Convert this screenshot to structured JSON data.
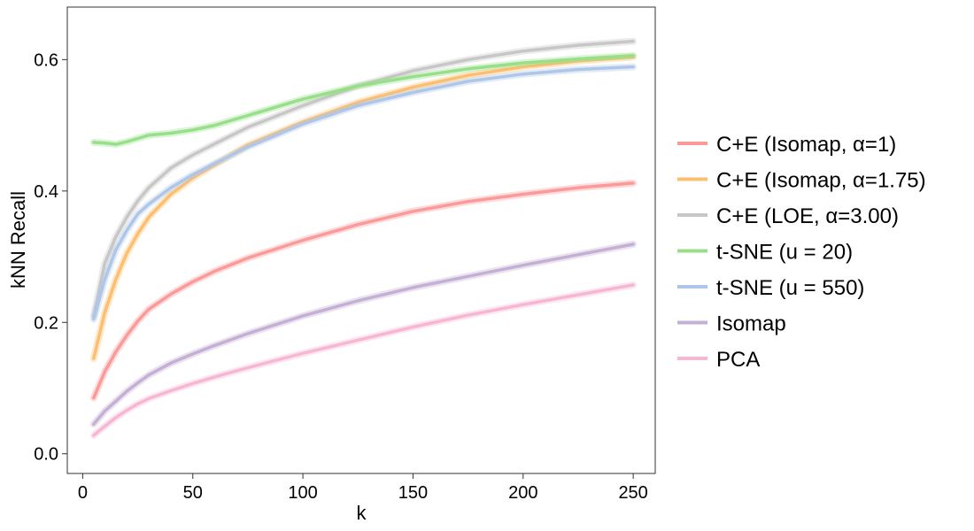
{
  "chart_data": {
    "type": "line",
    "title": "",
    "xlabel": "k",
    "ylabel": "kNN Recall",
    "xlim": [
      -7,
      260
    ],
    "ylim": [
      -0.03,
      0.68
    ],
    "x_ticks": [
      0,
      50,
      100,
      150,
      200,
      250
    ],
    "x_tick_labels": [
      "0",
      "50",
      "100",
      "150",
      "200",
      "250"
    ],
    "y_ticks": [
      0.0,
      0.2,
      0.4,
      0.6
    ],
    "y_tick_labels": [
      "0.0",
      "0.2",
      "0.4",
      "0.6"
    ],
    "grid": false,
    "legend_position": "right",
    "x": [
      5,
      10,
      15,
      20,
      25,
      30,
      40,
      50,
      60,
      75,
      100,
      125,
      150,
      175,
      200,
      225,
      250
    ],
    "series": [
      {
        "name": "C+E (Isomap, α=1)",
        "color": "#fb9a99",
        "values": [
          0.085,
          0.125,
          0.155,
          0.18,
          0.202,
          0.22,
          0.243,
          0.262,
          0.278,
          0.298,
          0.325,
          0.349,
          0.369,
          0.384,
          0.395,
          0.405,
          0.412
        ]
      },
      {
        "name": "C+E (Isomap, α=1.75)",
        "color": "#fdbf6f",
        "values": [
          0.145,
          0.215,
          0.265,
          0.305,
          0.335,
          0.36,
          0.395,
          0.42,
          0.44,
          0.47,
          0.505,
          0.535,
          0.558,
          0.576,
          0.589,
          0.598,
          0.604
        ]
      },
      {
        "name": "C+E (LOE, α=3.00)",
        "color": "#c7c7c7",
        "values": [
          0.21,
          0.29,
          0.33,
          0.36,
          0.385,
          0.405,
          0.435,
          0.455,
          0.472,
          0.497,
          0.53,
          0.56,
          0.583,
          0.6,
          0.613,
          0.622,
          0.628
        ]
      },
      {
        "name": "t-SNE (u = 20)",
        "color": "#98df8a",
        "values": [
          0.474,
          0.473,
          0.471,
          0.475,
          0.48,
          0.485,
          0.488,
          0.493,
          0.5,
          0.515,
          0.54,
          0.56,
          0.574,
          0.586,
          0.595,
          0.601,
          0.606
        ]
      },
      {
        "name": "t-SNE (u = 550)",
        "color": "#aec7e8",
        "values": [
          0.205,
          0.265,
          0.31,
          0.34,
          0.365,
          0.38,
          0.405,
          0.425,
          0.442,
          0.467,
          0.502,
          0.53,
          0.55,
          0.567,
          0.578,
          0.585,
          0.589
        ]
      },
      {
        "name": "Isomap",
        "color": "#c5b0d5",
        "values": [
          0.045,
          0.065,
          0.08,
          0.095,
          0.108,
          0.12,
          0.138,
          0.152,
          0.165,
          0.183,
          0.21,
          0.233,
          0.253,
          0.27,
          0.287,
          0.303,
          0.319
        ]
      },
      {
        "name": "PCA",
        "color": "#f7b6d2",
        "values": [
          0.028,
          0.042,
          0.055,
          0.066,
          0.076,
          0.084,
          0.096,
          0.107,
          0.117,
          0.131,
          0.153,
          0.173,
          0.193,
          0.211,
          0.227,
          0.242,
          0.257
        ]
      }
    ]
  }
}
